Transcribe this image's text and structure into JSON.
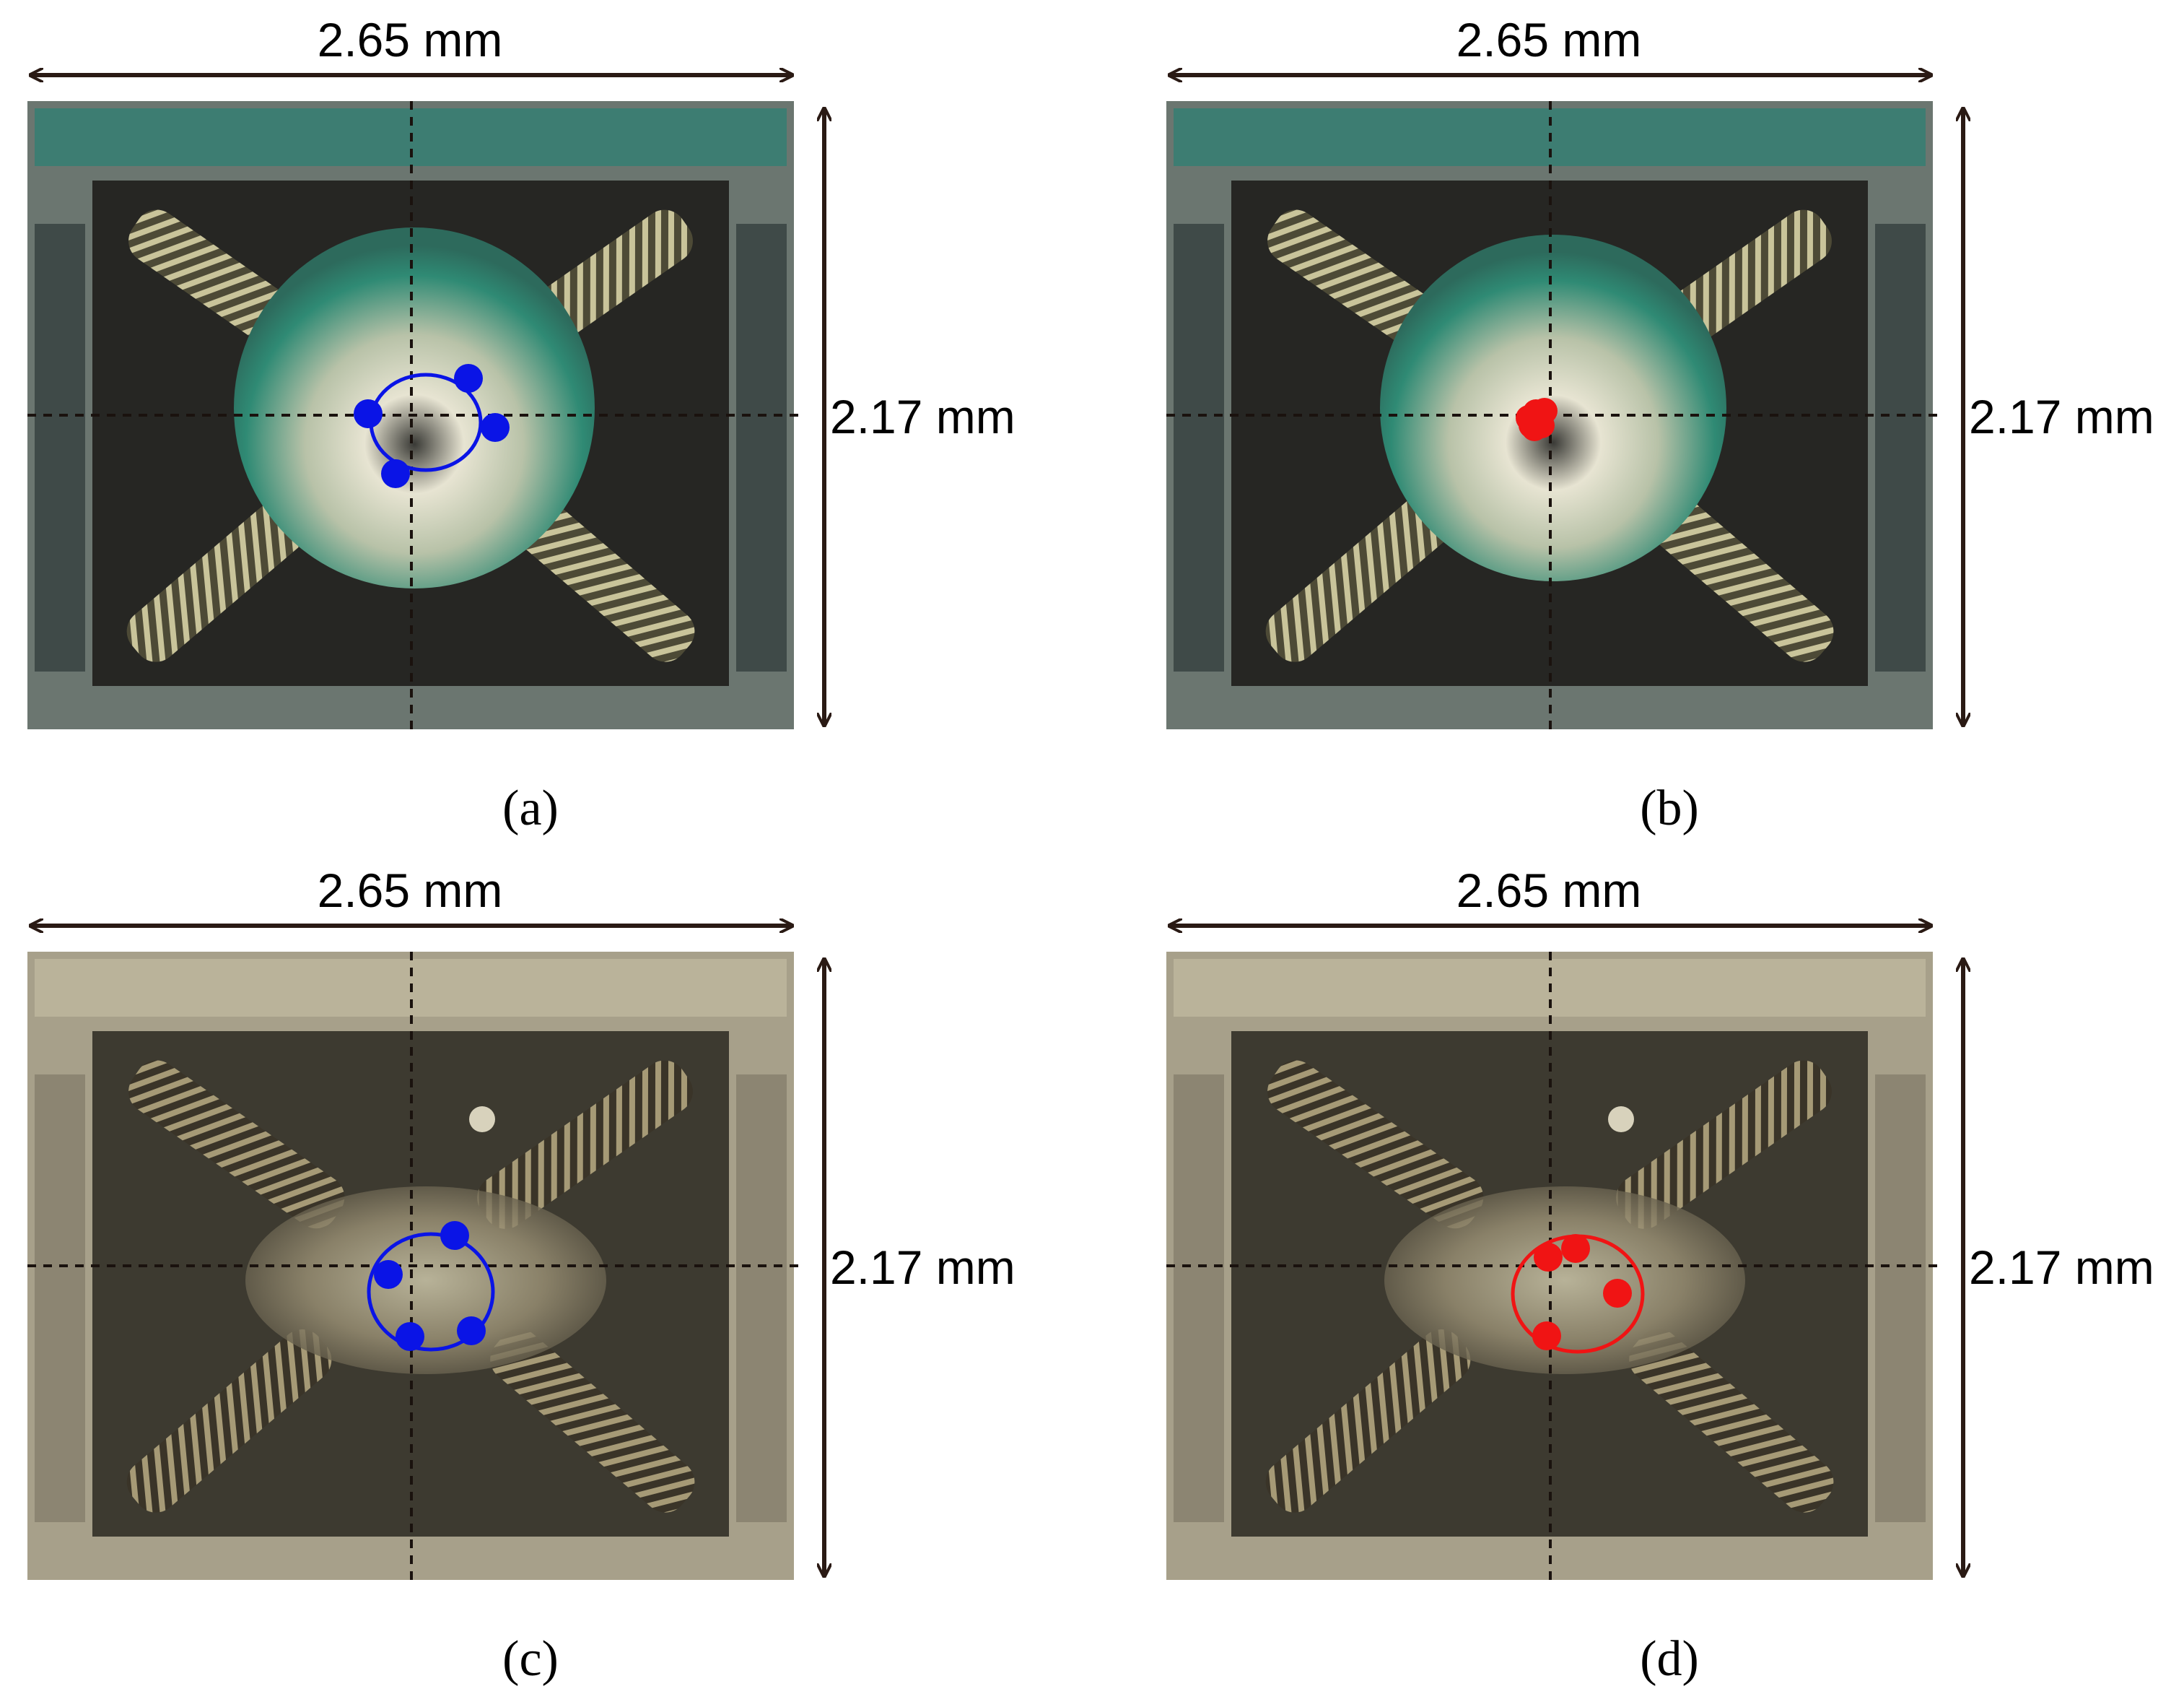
{
  "panels": [
    {
      "id": "a",
      "caption": "(a)",
      "width_label": "2.65 mm",
      "height_label": "2.17 mm",
      "marker_color": "#0a14e6",
      "variant": "green"
    },
    {
      "id": "b",
      "caption": "(b)",
      "width_label": "2.65 mm",
      "height_label": "2.17 mm",
      "marker_color": "#f01414",
      "variant": "green"
    },
    {
      "id": "c",
      "caption": "(c)",
      "width_label": "2.65 mm",
      "height_label": "2.17 mm",
      "marker_color": "#0a14e6",
      "variant": "beige"
    },
    {
      "id": "d",
      "caption": "(d)",
      "width_label": "2.65 mm",
      "height_label": "2.17 mm",
      "marker_color": "#f01414",
      "variant": "beige"
    }
  ]
}
